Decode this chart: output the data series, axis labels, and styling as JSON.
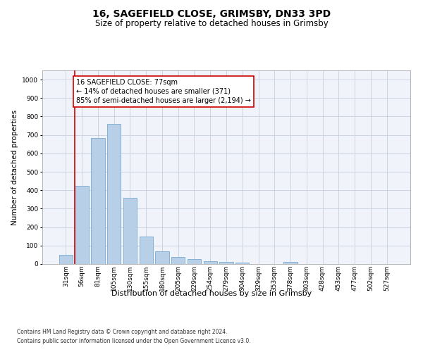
{
  "title1": "16, SAGEFIELD CLOSE, GRIMSBY, DN33 3PD",
  "title2": "Size of property relative to detached houses in Grimsby",
  "xlabel": "Distribution of detached houses by size in Grimsby",
  "ylabel": "Number of detached properties",
  "bar_labels": [
    "31sqm",
    "56sqm",
    "81sqm",
    "105sqm",
    "130sqm",
    "155sqm",
    "180sqm",
    "205sqm",
    "229sqm",
    "254sqm",
    "279sqm",
    "304sqm",
    "329sqm",
    "353sqm",
    "378sqm",
    "403sqm",
    "428sqm",
    "453sqm",
    "477sqm",
    "502sqm",
    "527sqm"
  ],
  "bar_values": [
    50,
    425,
    685,
    760,
    360,
    150,
    70,
    38,
    25,
    15,
    10,
    7,
    0,
    0,
    10,
    0,
    0,
    0,
    0,
    0,
    0
  ],
  "bar_color": "#b8cfe8",
  "bar_edgecolor": "#7aaace",
  "highlight_bar_index": 1,
  "highlight_line_color": "#cc0000",
  "annotation_line1": "16 SAGEFIELD CLOSE: 77sqm",
  "annotation_line2": "← 14% of detached houses are smaller (371)",
  "annotation_line3": "85% of semi-detached houses are larger (2,194) →",
  "annotation_box_facecolor": "#ffffff",
  "annotation_box_edgecolor": "#cc0000",
  "ylim": [
    0,
    1050
  ],
  "yticks": [
    0,
    100,
    200,
    300,
    400,
    500,
    600,
    700,
    800,
    900,
    1000
  ],
  "footnote1": "Contains HM Land Registry data © Crown copyright and database right 2024.",
  "footnote2": "Contains public sector information licensed under the Open Government Licence v3.0.",
  "bg_color": "#ffffff",
  "plot_bg_color": "#f0f4fa",
  "grid_color": "#c8d0de",
  "title1_fontsize": 10,
  "title2_fontsize": 8.5,
  "tick_fontsize": 6.5,
  "ylabel_fontsize": 7.5,
  "xlabel_fontsize": 8,
  "annotation_fontsize": 7,
  "footnote_fontsize": 5.5
}
